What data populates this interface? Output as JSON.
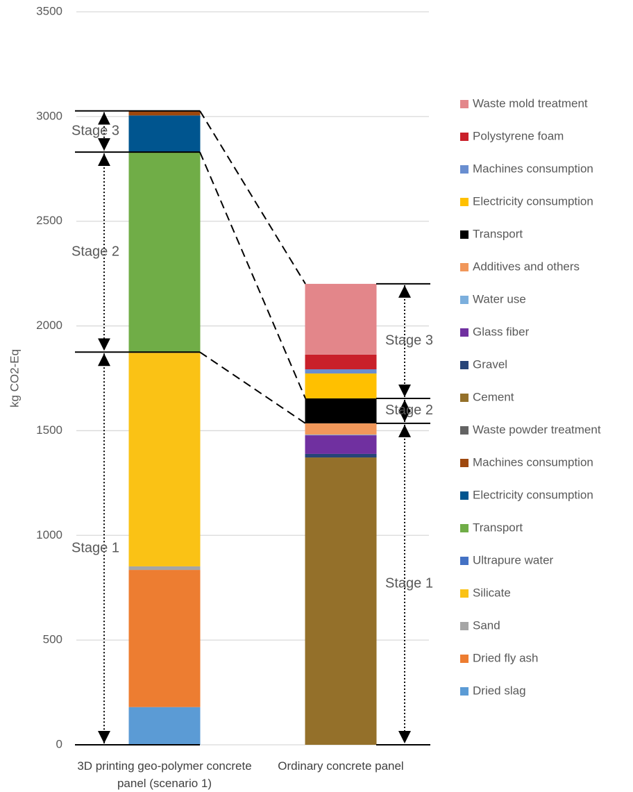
{
  "chart_data": {
    "type": "stacked_bar",
    "y_label": "kg CO2-Eq",
    "categories": [
      "3D printing geo-polymer concrete panel (scenario 1)",
      "Ordinary concrete panel"
    ],
    "ylim": [
      0,
      3500
    ],
    "yticks": [
      0,
      500,
      1000,
      1500,
      2000,
      2500,
      3000,
      3500
    ],
    "grid": true,
    "stages": [
      "Stage 1",
      "Stage 2",
      "Stage 3"
    ],
    "series": [
      {
        "name": "Dried slag",
        "color": "#5b9bd5",
        "values": [
          180,
          0
        ]
      },
      {
        "name": "Dried fly ash",
        "color": "#ed7d31",
        "values": [
          655,
          0
        ]
      },
      {
        "name": "Sand",
        "color": "#a5a5a5",
        "values": [
          17,
          0
        ]
      },
      {
        "name": "Silicate",
        "color": "#fac215",
        "values": [
          1020,
          0
        ]
      },
      {
        "name": "Ultrapure water",
        "color": "#4472c4",
        "values": [
          3,
          0
        ]
      },
      {
        "name": "Transport",
        "color": "#70ad47",
        "values": [
          955,
          0
        ]
      },
      {
        "name": "Electricity consumption",
        "color": "#00558f",
        "values": [
          175,
          0
        ]
      },
      {
        "name": "Machines consumption",
        "color": "#9e480e",
        "values": [
          20,
          0
        ]
      },
      {
        "name": "Waste powder treatment",
        "color": "#636363",
        "values": [
          2,
          0
        ]
      },
      {
        "name": "Cement",
        "color": "#94702a",
        "values": [
          0,
          1372
        ]
      },
      {
        "name": "Gravel",
        "color": "#264478",
        "values": [
          0,
          17
        ]
      },
      {
        "name": "Glass fiber",
        "color": "#7030a0",
        "values": [
          0,
          89
        ]
      },
      {
        "name": "Water use",
        "color": "#7cafdd",
        "values": [
          0,
          3
        ]
      },
      {
        "name": "Additives and others",
        "color": "#f1975a",
        "values": [
          0,
          54
        ]
      },
      {
        "name": "Transport",
        "color": "#000000",
        "values": [
          0,
          119
        ]
      },
      {
        "name": "Electricity consumption",
        "color": "#ffc000",
        "values": [
          0,
          119
        ]
      },
      {
        "name": "Machines consumption",
        "color": "#698ed0",
        "values": [
          0,
          20
        ]
      },
      {
        "name": "Polystyrene foam",
        "color": "#c9202a",
        "values": [
          0,
          70
        ]
      },
      {
        "name": "Waste mold treatment",
        "color": "#e3868a",
        "values": [
          0,
          338
        ]
      }
    ]
  }
}
